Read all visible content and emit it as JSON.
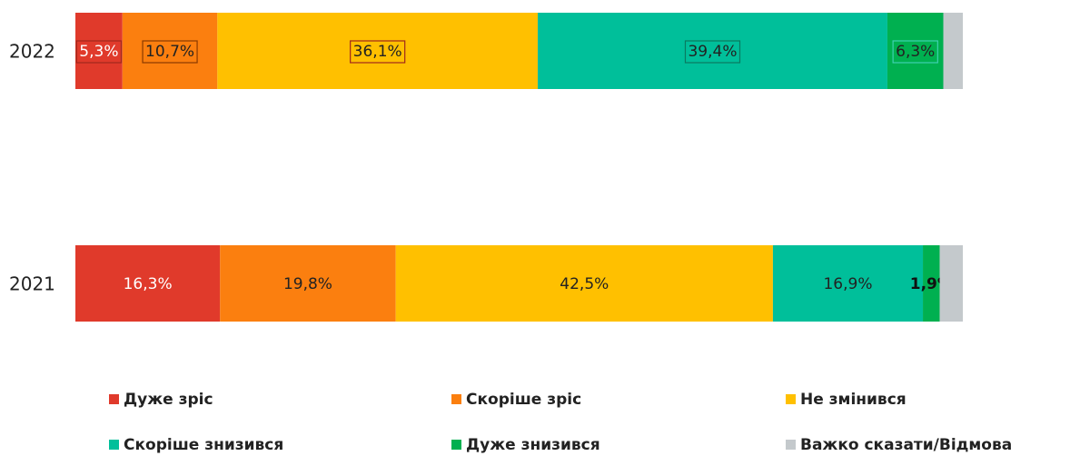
{
  "chart_data": {
    "type": "stacked-bar-horizontal",
    "categories": [
      "2022",
      "2021"
    ],
    "xlim": [
      0,
      100
    ],
    "series": [
      {
        "name": "Дуже зріс",
        "color": "#e03a2b",
        "values": [
          5.3,
          16.3
        ],
        "value_labels": [
          "5,3%",
          "16,3%"
        ]
      },
      {
        "name": "Скоріше зріс",
        "color": "#fb7f0f",
        "values": [
          10.7,
          19.8
        ],
        "value_labels": [
          "10,7%",
          "19,8%"
        ]
      },
      {
        "name": "Не змінився",
        "color": "#ffc000",
        "values": [
          36.1,
          42.5
        ],
        "value_labels": [
          "36,1%",
          "42,5%"
        ]
      },
      {
        "name": "Скоріше знизився",
        "color": "#00bf9a",
        "values": [
          39.4,
          16.9
        ],
        "value_labels": [
          "39,4%",
          "16,9%"
        ]
      },
      {
        "name": "Дуже знизився",
        "color": "#00b050",
        "values": [
          6.3,
          1.9
        ],
        "value_labels": [
          "6,3%",
          "1,9%"
        ]
      },
      {
        "name": "Важко сказати/Відмова",
        "color": "#c4c9cc",
        "values": [
          2.2,
          2.6
        ]
      }
    ]
  }
}
